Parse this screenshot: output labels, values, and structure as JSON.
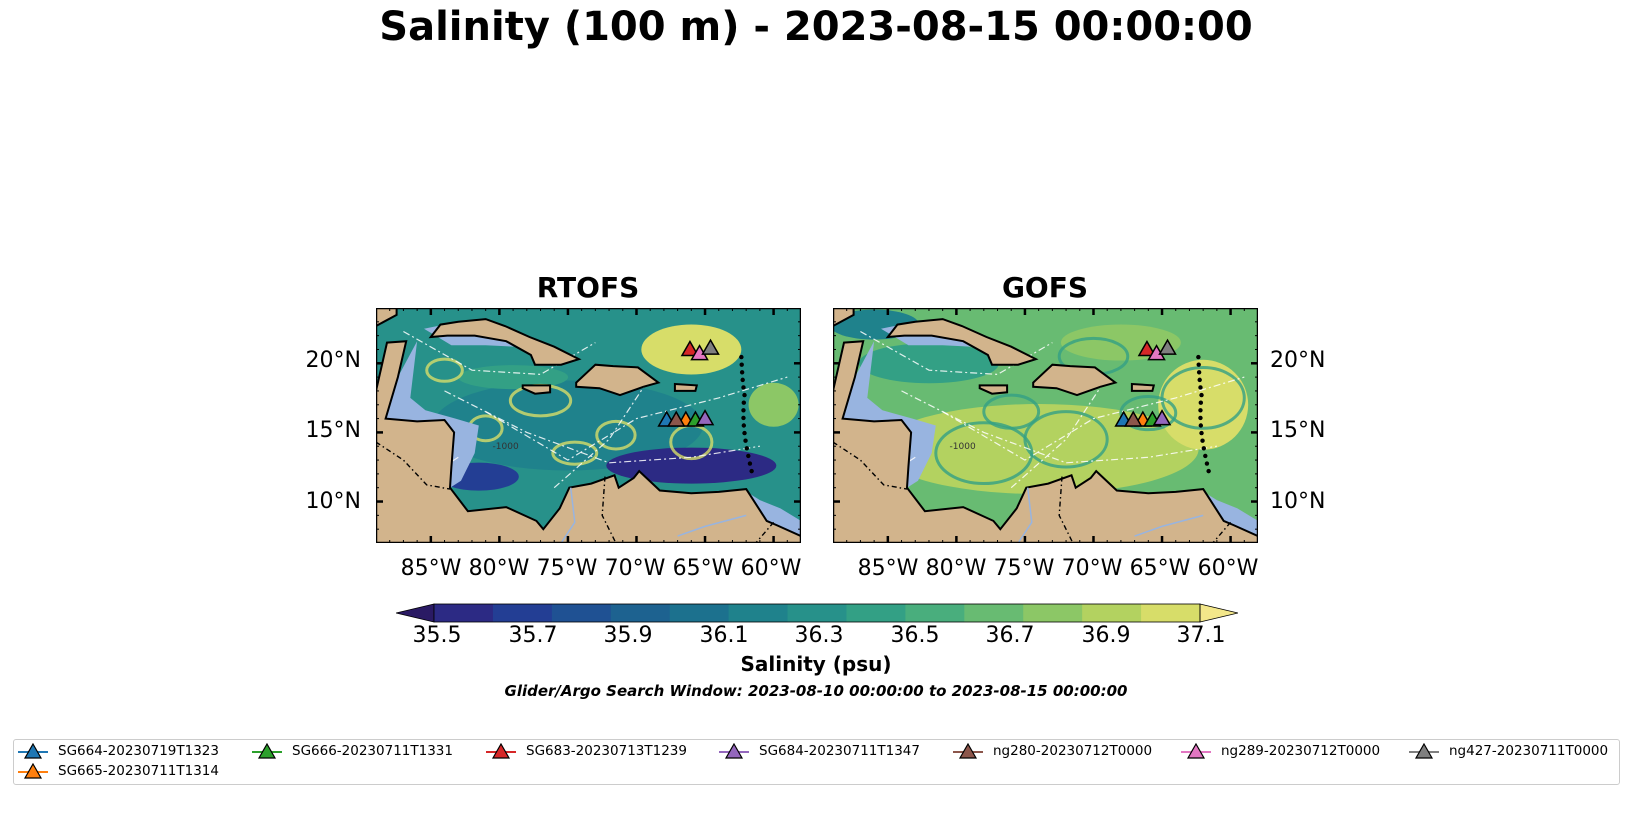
{
  "suptitle": "Salinity (100 m) - 2023-08-15 00:00:00",
  "panels": [
    {
      "title": "RTOFS"
    },
    {
      "title": "GOFS"
    }
  ],
  "lat_labels": [
    "20°N",
    "15°N",
    "10°N"
  ],
  "lon_labels": [
    "85°W",
    "80°W",
    "75°W",
    "70°W",
    "65°W",
    "60°W"
  ],
  "map_extent": {
    "lon_min": -89,
    "lon_max": -58,
    "lat_min": 7,
    "lat_max": 24
  },
  "isobath_labels": [
    "-1000"
  ],
  "colorbar": {
    "ticks": [
      "35.5",
      "35.7",
      "35.9",
      "36.1",
      "36.3",
      "36.5",
      "36.7",
      "36.9",
      "37.1"
    ],
    "range": [
      35.4,
      37.2
    ],
    "colors": [
      "#2a1a64",
      "#2c2a84",
      "#233e94",
      "#1f5193",
      "#1d6290",
      "#1c718e",
      "#1f828c",
      "#27918a",
      "#33a085",
      "#49ae7d",
      "#68bb72",
      "#8cc766",
      "#b3d260",
      "#d7dd69",
      "#f3e78a"
    ],
    "label": "Salinity (psu)",
    "colormap": "haline"
  },
  "search_window": "Glider/Argo Search Window: 2023-08-10 00:00:00 to 2023-08-15 00:00:00",
  "colors": {
    "land": "#d2b48c",
    "shelf": "#98b4e0",
    "coast": "#000000"
  },
  "gliders": [
    {
      "name": "SG664-20230719T1323",
      "color": "#1f77b4",
      "lon": -67.8,
      "lat": 15.9
    },
    {
      "name": "SG665-20230711T1314",
      "color": "#ff7f0e",
      "lon": -66.4,
      "lat": 15.9
    },
    {
      "name": "SG666-20230711T1331",
      "color": "#2ca02c",
      "lon": -65.7,
      "lat": 15.9
    },
    {
      "name": "SG683-20230713T1239",
      "color": "#d62728",
      "lon": -66.1,
      "lat": 21.0
    },
    {
      "name": "SG684-20230711T1347",
      "color": "#9467bd",
      "lon": -65.0,
      "lat": 16.0
    },
    {
      "name": "ng280-20230712T0000",
      "color": "#8c564b",
      "lon": -67.1,
      "lat": 15.9
    },
    {
      "name": "ng289-20230712T0000",
      "color": "#e377c2",
      "lon": -65.4,
      "lat": 20.7
    },
    {
      "name": "ng427-20230711T0000",
      "color": "#7f7f7f",
      "lon": -64.6,
      "lat": 21.1
    }
  ],
  "legend_order": [
    0,
    2,
    3,
    4,
    5,
    6,
    7,
    1
  ]
}
